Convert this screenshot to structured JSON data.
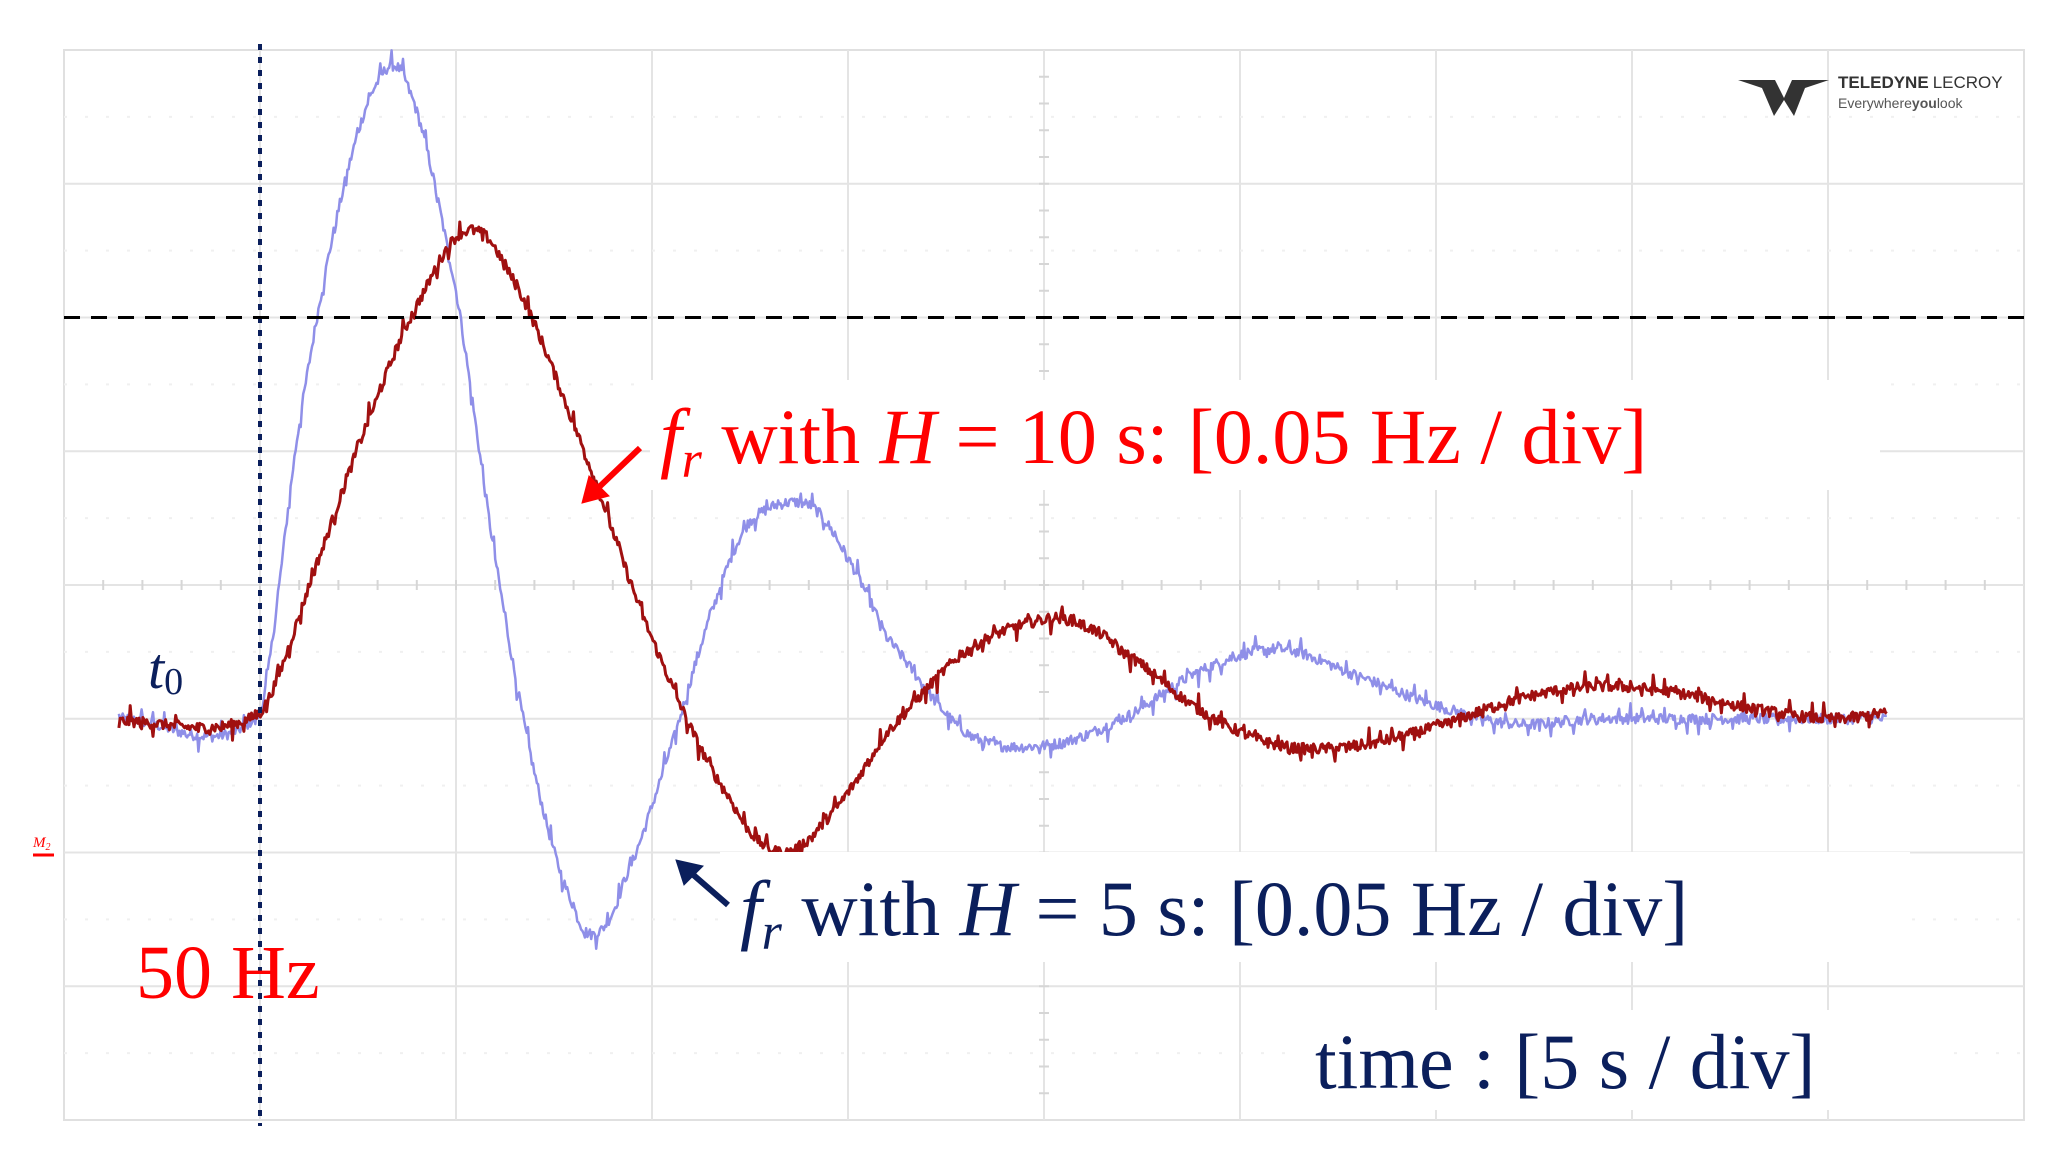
{
  "chart_data": {
    "type": "line",
    "title": "",
    "xlabel": "time : [5 s / div]",
    "ylabel": "",
    "x_unit": "s",
    "y_unit": "Hz",
    "x_per_div": 5,
    "y_per_div": 0.05,
    "xlim": [
      -5,
      45
    ],
    "ylim": [
      49.85,
      50.25
    ],
    "grid": true,
    "legend": "none",
    "t0_label_main": "t",
    "t0_label_sub": "0",
    "reference_label": "50 Hz",
    "channel_marker_main": "M",
    "channel_marker_sub": "2",
    "series": [
      {
        "name_var": "f",
        "name_sub": "r",
        "name_mid": " with ",
        "name_h": "H",
        "name_rest": " = 10 s: [0.05 Hz / div]",
        "color": "#a01010",
        "arrow_color": "#ff0000",
        "text_color": "#ff0000",
        "x": [
          -3.6,
          0,
          1.5,
          3,
          4.2,
          5.2,
          6.2,
          8,
          10,
          12,
          13.3,
          14.6,
          16,
          18,
          20,
          21,
          22,
          24,
          26,
          28,
          30,
          32,
          34,
          36,
          38,
          40,
          41.5
        ],
        "y": [
          49.999,
          50.002,
          50.06,
          50.12,
          50.16,
          50.182,
          50.17,
          50.11,
          50.03,
          49.97,
          49.95,
          49.965,
          49.995,
          50.025,
          50.037,
          50.035,
          50.025,
          50.003,
          49.99,
          49.99,
          49.997,
          50.007,
          50.012,
          50.01,
          50.004,
          50.0,
          50.002
        ]
      },
      {
        "name_var": "f",
        "name_sub": "r",
        "name_mid": " with ",
        "name_h": "H",
        "name_rest": " = 5 s: [0.05 Hz / div]",
        "color": "#8f8fe8",
        "arrow_color": "#0b1f5c",
        "text_color": "#0b1f5c",
        "x": [
          -3.6,
          0,
          1,
          2,
          3,
          3.8,
          5,
          6,
          7,
          8,
          8.6,
          9.3,
          10.5,
          11.6,
          12.5,
          14,
          15,
          16,
          18,
          20,
          22,
          24,
          26,
          28,
          30,
          32,
          34,
          36,
          38,
          40,
          41.5
        ],
        "y": [
          50.0,
          50.002,
          50.11,
          50.19,
          50.238,
          50.235,
          50.16,
          50.06,
          49.98,
          49.93,
          49.92,
          49.94,
          49.99,
          50.043,
          50.074,
          50.08,
          50.06,
          50.03,
          49.995,
          49.99,
          50.0,
          50.018,
          50.026,
          50.016,
          50.005,
          49.998,
          50.0,
          50.0,
          50.0,
          50.0,
          50.0
        ]
      }
    ]
  },
  "watermark": {
    "brand_bold": "TELEDYNE",
    "brand_light": "LECROY",
    "tagline_a": "Everywhere",
    "tagline_b": "you",
    "tagline_c": "look"
  }
}
